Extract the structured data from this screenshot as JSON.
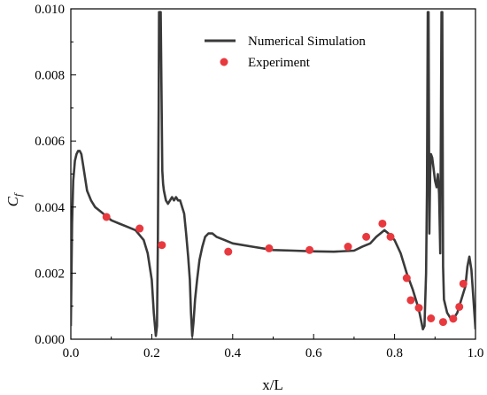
{
  "chart_data": {
    "type": "line",
    "xlabel": "x/L",
    "ylabel_main": "C",
    "ylabel_sub": "f",
    "xlim": [
      0.0,
      1.0
    ],
    "ylim": [
      0.0,
      0.01
    ],
    "xticks": [
      "0.0",
      "0.2",
      "0.4",
      "0.6",
      "0.8",
      "1.0"
    ],
    "yticks": [
      "0.000",
      "0.002",
      "0.004",
      "0.006",
      "0.008",
      "0.010"
    ],
    "grid": false,
    "legend_position": "top-right",
    "series": [
      {
        "name": "Numerical Simulation",
        "kind": "line",
        "color": "#3a3a3a",
        "x": [
          0.0,
          0.003,
          0.006,
          0.01,
          0.014,
          0.018,
          0.022,
          0.026,
          0.03,
          0.04,
          0.05,
          0.06,
          0.07,
          0.08,
          0.09,
          0.1,
          0.12,
          0.14,
          0.16,
          0.18,
          0.19,
          0.2,
          0.205,
          0.21,
          0.213,
          0.215,
          0.217,
          0.218,
          0.22,
          0.222,
          0.224,
          0.226,
          0.228,
          0.23,
          0.235,
          0.24,
          0.245,
          0.25,
          0.255,
          0.26,
          0.265,
          0.27,
          0.275,
          0.28,
          0.285,
          0.29,
          0.294,
          0.297,
          0.3,
          0.303,
          0.307,
          0.312,
          0.318,
          0.325,
          0.332,
          0.34,
          0.35,
          0.36,
          0.38,
          0.4,
          0.45,
          0.5,
          0.55,
          0.6,
          0.65,
          0.7,
          0.72,
          0.74,
          0.755,
          0.765,
          0.775,
          0.785,
          0.8,
          0.815,
          0.83,
          0.845,
          0.86,
          0.87,
          0.874,
          0.878,
          0.88,
          0.882,
          0.884,
          0.886,
          0.888,
          0.89,
          0.893,
          0.896,
          0.9,
          0.904,
          0.907,
          0.91,
          0.913,
          0.916,
          0.918,
          0.92,
          0.922,
          0.93,
          0.94,
          0.95,
          0.955,
          0.96,
          0.965,
          0.97,
          0.975,
          0.98,
          0.985,
          0.99,
          0.995,
          1.0
        ],
        "values": [
          0.0004,
          0.0035,
          0.0048,
          0.0054,
          0.0056,
          0.0057,
          0.0057,
          0.0056,
          0.0053,
          0.0045,
          0.0042,
          0.004,
          0.0039,
          0.0038,
          0.0037,
          0.0036,
          0.0035,
          0.0034,
          0.0033,
          0.003,
          0.0026,
          0.0018,
          0.0008,
          0.0001,
          0.0004,
          0.003,
          0.007,
          0.0099,
          0.0099,
          0.0099,
          0.0075,
          0.0051,
          0.0047,
          0.0045,
          0.0042,
          0.0041,
          0.0042,
          0.0043,
          0.0042,
          0.0043,
          0.0042,
          0.0042,
          0.004,
          0.0038,
          0.0032,
          0.0025,
          0.0018,
          0.0008,
          0.0001,
          0.0005,
          0.0012,
          0.0018,
          0.0024,
          0.0028,
          0.0031,
          0.0032,
          0.0032,
          0.0031,
          0.003,
          0.0029,
          0.0028,
          0.0027,
          0.00268,
          0.00266,
          0.00265,
          0.00268,
          0.0028,
          0.0029,
          0.0031,
          0.0032,
          0.0033,
          0.0032,
          0.003,
          0.0026,
          0.002,
          0.0015,
          0.0009,
          0.0003,
          0.0004,
          0.002,
          0.0045,
          0.0099,
          0.0099,
          0.0032,
          0.005,
          0.0056,
          0.0055,
          0.0052,
          0.0048,
          0.0046,
          0.005,
          0.0044,
          0.0026,
          0.0099,
          0.0099,
          0.0022,
          0.0012,
          0.0008,
          0.0006,
          0.0007,
          0.0008,
          0.001,
          0.0012,
          0.0014,
          0.0016,
          0.0022,
          0.0025,
          0.0021,
          0.0012,
          0.0003
        ]
      },
      {
        "name": "Experiment",
        "kind": "scatter",
        "color": "#e8393f",
        "x": [
          0.088,
          0.17,
          0.225,
          0.389,
          0.49,
          0.59,
          0.685,
          0.73,
          0.77,
          0.79,
          0.83,
          0.84,
          0.86,
          0.89,
          0.92,
          0.945,
          0.96,
          0.97
        ],
        "values": [
          0.0037,
          0.00335,
          0.00285,
          0.00265,
          0.00275,
          0.0027,
          0.0028,
          0.0031,
          0.0035,
          0.0031,
          0.00185,
          0.00118,
          0.00095,
          0.00063,
          0.00052,
          0.00062,
          0.00098,
          0.00168
        ]
      }
    ]
  }
}
